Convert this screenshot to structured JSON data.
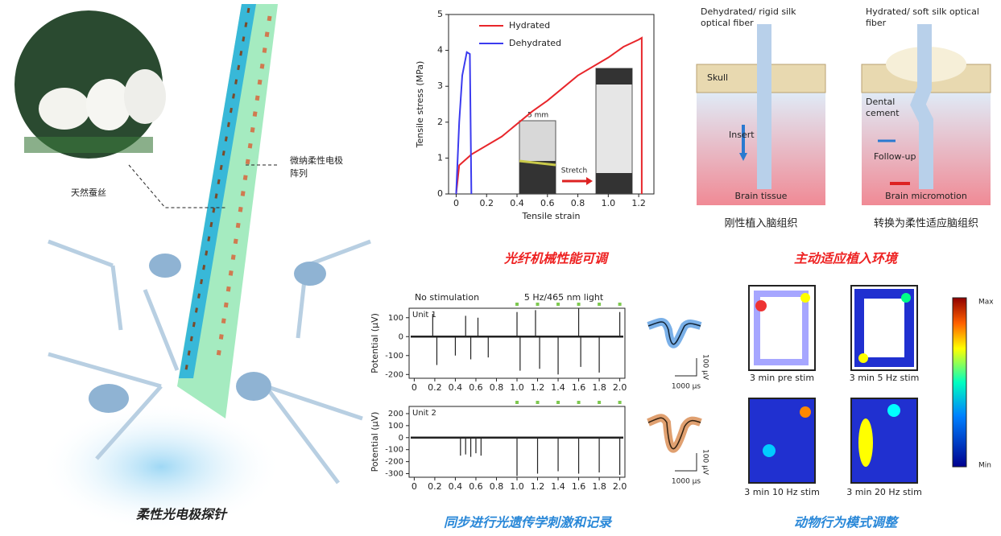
{
  "labels": {
    "silk": "天然蚕丝",
    "array_line1": "微纳柔性电极",
    "array_line2": "阵列",
    "probe_caption": "柔性光电极探针",
    "mech_caption": "光纤机械性能可调",
    "implant_caption": "主动适应植入环境",
    "opto_caption": "同步进行光遗传学刺激和记录",
    "behavior_caption": "动物行为模式调整",
    "inset_scale": "5 mm",
    "inset_stretch": "Stretch",
    "dehyd_fiber_1": "Dehydrated/ rigid silk",
    "dehyd_fiber_2": "optical fiber",
    "hyd_fiber_1": "Hydrated/ soft silk optical",
    "hyd_fiber_2": "fiber",
    "skull": "Skull",
    "dental_1": "Dental",
    "dental_2": "cement",
    "insert": "Insert",
    "follow": "Follow-up",
    "brain_tissue": "Brain tissue",
    "micromotion": "Brain micromotion",
    "rigid_caption": "刚性植入脑组织",
    "soft_caption": "转换为柔性适应脑组织",
    "no_stim": "No stimulation",
    "light": "5 Hz/465 nm light",
    "wave_amp": "100 µV",
    "wave_time": "1000 µs",
    "heat_1": "3 min pre stim",
    "heat_2": "3 min 5 Hz stim",
    "heat_3": "3 min 10 Hz stim",
    "heat_4": "3 min 20 Hz stim",
    "cbar_max": "Max",
    "cbar_min": "Min"
  },
  "chart_data": [
    {
      "type": "line",
      "x_label": "Tensile strain",
      "y_label": "Tensile stress (MPa)",
      "xlim": [
        -0.05,
        1.3
      ],
      "ylim": [
        0,
        5
      ],
      "xticks": [
        0,
        0.2,
        0.4,
        0.6,
        0.8,
        {
          "value": 1,
          "label": "1.0"
        },
        1.2
      ],
      "yticks": [
        0,
        1,
        2,
        3,
        4,
        5
      ],
      "series": [
        {
          "name": "Hydrated",
          "color": "#e8262b",
          "x": [
            0,
            0.02,
            0.1,
            0.3,
            0.5,
            0.6,
            0.8,
            1.0,
            1.1,
            1.2,
            1.22,
            1.22
          ],
          "values": [
            0,
            0.8,
            1.1,
            1.6,
            2.3,
            2.6,
            3.3,
            3.8,
            4.1,
            4.3,
            4.35,
            0
          ]
        },
        {
          "name": "Dehydrated",
          "color": "#3b3bef",
          "x": [
            0,
            0.02,
            0.04,
            0.07,
            0.09,
            0.1
          ],
          "values": [
            0,
            2,
            3.3,
            3.95,
            3.9,
            0
          ]
        }
      ]
    },
    {
      "type": "spike",
      "title": "Unit 1",
      "y_label": "Potential (µV)",
      "color": "#3a78c8",
      "xlim": [
        -0.05,
        2.05
      ],
      "ylim": [
        -220,
        150
      ],
      "xticks": [
        0,
        0.2,
        0.4,
        0.6,
        0.8,
        {
          "value": 1,
          "label": "1.0"
        },
        1.2,
        1.4,
        1.6,
        1.8,
        {
          "value": 2,
          "label": "2.0"
        }
      ],
      "yticks": [
        -200,
        -100,
        0,
        100
      ],
      "x": [
        0.18,
        0.22,
        0.4,
        0.5,
        0.55,
        0.62,
        0.72,
        1.0,
        1.03,
        1.18,
        1.22,
        1.4,
        1.6,
        1.62,
        1.8,
        2.0
      ],
      "values": [
        120,
        -150,
        -100,
        110,
        -120,
        100,
        -110,
        130,
        -180,
        140,
        -170,
        -200,
        150,
        -160,
        -190,
        130
      ],
      "stim": [
        1.0,
        1.2,
        1.4,
        1.6,
        1.8,
        2.0
      ]
    },
    {
      "type": "spike",
      "title": "Unit 2",
      "y_label": "Potential (µV)",
      "color": "#c0743a",
      "xlim": [
        -0.05,
        2.05
      ],
      "ylim": [
        -330,
        260
      ],
      "xticks": [
        0,
        0.2,
        0.4,
        0.6,
        0.8,
        {
          "value": 1,
          "label": "1.0"
        },
        1.2,
        1.4,
        1.6,
        1.8,
        {
          "value": 2,
          "label": "2.0"
        }
      ],
      "yticks": [
        -300,
        -200,
        -100,
        0,
        100,
        200
      ],
      "x": [
        0.45,
        0.5,
        0.55,
        0.6,
        0.65,
        1.0,
        1.2,
        1.4,
        1.6,
        1.8,
        2.0
      ],
      "values": [
        -150,
        -140,
        -160,
        -130,
        -150,
        -320,
        -300,
        -280,
        -300,
        -290,
        -310
      ],
      "stim": [
        1.0,
        1.2,
        1.4,
        1.6,
        1.8,
        2.0
      ]
    }
  ]
}
